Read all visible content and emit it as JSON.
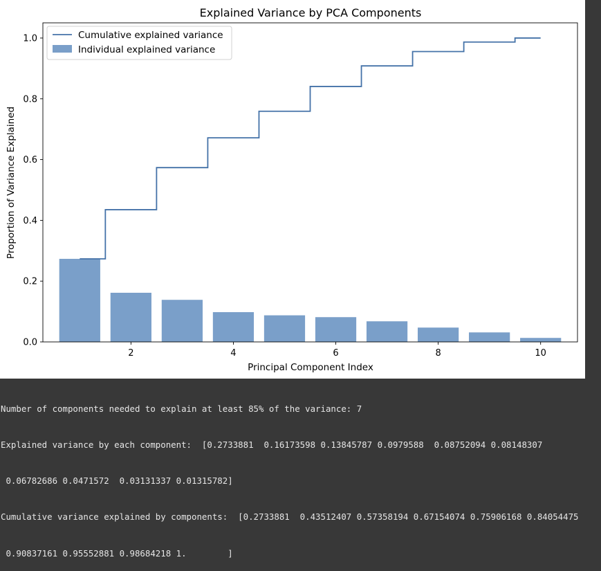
{
  "chart_data": {
    "type": "bar",
    "title": "Explained Variance by PCA Components",
    "xlabel": "Principal Component Index",
    "ylabel": "Proportion of Variance Explained",
    "xlim": [
      0.28,
      10.72
    ],
    "ylim": [
      0.0,
      1.05
    ],
    "xticks": [
      2,
      4,
      6,
      8,
      10
    ],
    "yticks": [
      "0.0",
      "0.2",
      "0.4",
      "0.6",
      "0.8",
      "1.0"
    ],
    "yticks_values": [
      0.0,
      0.2,
      0.4,
      0.6,
      0.8,
      1.0
    ],
    "x": [
      1,
      2,
      3,
      4,
      5,
      6,
      7,
      8,
      9,
      10
    ],
    "series": [
      {
        "name": "Individual explained variance",
        "kind": "bar",
        "color": "#7a9fc9",
        "values": [
          0.2733881,
          0.16173598,
          0.13845787,
          0.0979588,
          0.08752094,
          0.08148307,
          0.06782686,
          0.0471572,
          0.03131337,
          0.01315782
        ]
      },
      {
        "name": "Cumulative explained variance",
        "kind": "step",
        "color": "#4472a8",
        "values": [
          0.2733881,
          0.43512407,
          0.57358194,
          0.67154074,
          0.75906168,
          0.84054475,
          0.90837161,
          0.95552881,
          0.98684218,
          1.0
        ]
      }
    ],
    "legend": {
      "position": "top-left",
      "entries": [
        "Cumulative explained variance",
        "Individual explained variance"
      ]
    }
  },
  "console": {
    "lines": [
      "Number of components needed to explain at least 85% of the variance: 7",
      "Explained variance by each component:  [0.2733881  0.16173598 0.13845787 0.0979588  0.08752094 0.08148307",
      " 0.06782686 0.0471572  0.03131337 0.01315782]",
      "Cumulative variance explained by components:  [0.2733881  0.43512407 0.57358194 0.67154074 0.75906168 0.84054475",
      " 0.90837161 0.95552881 0.98684218 1.        ]"
    ]
  }
}
